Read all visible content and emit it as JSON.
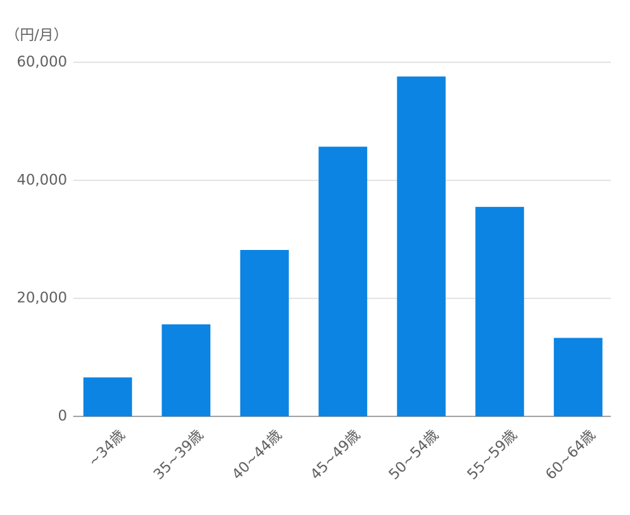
{
  "chart_data": {
    "type": "bar",
    "y_unit_label": "（円/月）",
    "categories": [
      "~34歳",
      "35~39歳",
      "40~44歳",
      "45~49歳",
      "50~54歳",
      "55~59歳",
      "60~64歳"
    ],
    "values": [
      6600,
      15600,
      28200,
      45700,
      57600,
      35500,
      13300
    ],
    "color": "#0b84e3",
    "ylim": [
      0,
      60000
    ],
    "yticks": [
      0,
      {
        "value": 20000,
        "label": "20,000"
      },
      {
        "value": 40000,
        "label": "40,000"
      },
      {
        "value": 60000,
        "label": "60,000"
      }
    ],
    "grid": true
  }
}
